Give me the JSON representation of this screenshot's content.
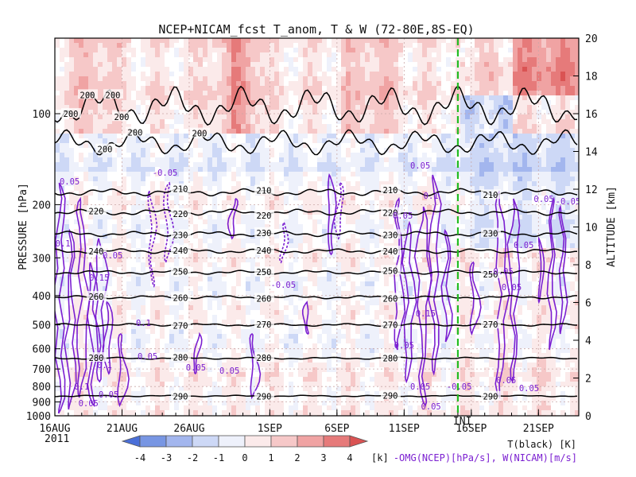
{
  "chart_data": {
    "type": "heatmap",
    "title": "NCEP+NICAM_fcst T_anom, T & W  (72-80E,8S-EQ)",
    "ylabel": "PRESSURE [hPa]",
    "y2label": "ALTITUDE [km]",
    "pressure_ticks": [
      {
        "value": 100,
        "label": "100"
      },
      {
        "value": 200,
        "label": "200"
      },
      {
        "value": 300,
        "label": "300"
      },
      {
        "value": 400,
        "label": "400"
      },
      {
        "value": 500,
        "label": "500"
      },
      {
        "value": 600,
        "label": "600"
      },
      {
        "value": 700,
        "label": "700"
      },
      {
        "value": 800,
        "label": "800"
      },
      {
        "value": 900,
        "label": "900"
      },
      {
        "value": 1000,
        "label": "1000"
      }
    ],
    "altitude_ticks": [
      0,
      2,
      4,
      6,
      8,
      10,
      12,
      14,
      16,
      18,
      20
    ],
    "altitude_range_km": [
      0,
      20
    ],
    "x_range": [
      "2011-08-16",
      "2011-09-24"
    ],
    "x_ticks": [
      {
        "date": "2011-08-16",
        "label": "16AUG"
      },
      {
        "date": "2011-08-21",
        "label": "21AUG"
      },
      {
        "date": "2011-08-26",
        "label": "26AUG"
      },
      {
        "date": "2011-09-01",
        "label": "1SEP"
      },
      {
        "date": "2011-09-06",
        "label": "6SEP"
      },
      {
        "date": "2011-09-11",
        "label": "11SEP"
      },
      {
        "date": "2011-09-16",
        "label": "16SEP"
      },
      {
        "date": "2011-09-21",
        "label": "21SEP"
      }
    ],
    "year_label": "2011",
    "forecast_start": "2011-09-15",
    "forecast_marker_label": "INI",
    "grid": true,
    "colorbar": {
      "levels": [
        "-4",
        "-3",
        "-2",
        "-1",
        "0",
        "1",
        "2",
        "3",
        "4"
      ],
      "colors": [
        "#4a6fd8",
        "#7896e3",
        "#a3b6ee",
        "#cdd8f6",
        "#eef1fb",
        "#fbeaea",
        "#f6c8c8",
        "#f0a3a3",
        "#e67a7a",
        "#da5353"
      ],
      "unit": "[k]"
    },
    "temperature_contours": [
      {
        "label": "200",
        "value_K": 200
      },
      {
        "label": "210",
        "value_K": 210
      },
      {
        "label": "220",
        "value_K": 220
      },
      {
        "label": "230",
        "value_K": 230
      },
      {
        "label": "240",
        "value_K": 240
      },
      {
        "label": "250",
        "value_K": 250
      },
      {
        "label": "260",
        "value_K": 260
      },
      {
        "label": "270",
        "value_K": 270
      },
      {
        "label": "280",
        "value_K": 280
      },
      {
        "label": "290",
        "value_K": 290
      }
    ],
    "w_contour_levels": [
      "0.05",
      "0.1",
      "0.15",
      "-0.05"
    ],
    "legend_temperature": "T(black) [K]",
    "legend_w": "-OMG(NCEP)[hPa/s], W(NICAM)[m/s]"
  }
}
